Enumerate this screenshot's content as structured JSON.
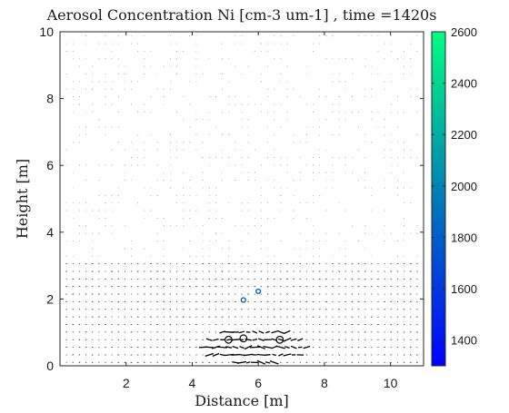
{
  "chart_data": {
    "type": "quiver",
    "title": "Aerosol Concentration Ni [cm-3 um-1] , time =1420s",
    "xlabel": "Distance [m]",
    "ylabel": "Height [m]",
    "xlim": [
      0,
      11
    ],
    "ylim": [
      0,
      10
    ],
    "xticks": [
      "2",
      "4",
      "6",
      "8",
      "10"
    ],
    "yticks": [
      "0",
      "2",
      "4",
      "6",
      "8",
      "10"
    ],
    "grid": false,
    "colorbar": {
      "range": [
        1300,
        2600
      ],
      "ticks": [
        "1400",
        "1600",
        "1800",
        "2000",
        "2200",
        "2400",
        "2600"
      ],
      "colors": [
        "#0000ff",
        "#007ab8",
        "#00ff80"
      ]
    },
    "particles": [
      {
        "x": 5.55,
        "y": 1.97,
        "value": 1850
      },
      {
        "x": 6.0,
        "y": 2.23,
        "value": 1800
      }
    ],
    "outline_circles": [
      {
        "x": 5.1,
        "y": 0.78
      },
      {
        "x": 5.55,
        "y": 0.82
      },
      {
        "x": 6.65,
        "y": 0.78
      }
    ],
    "vector_color": "#000000"
  }
}
